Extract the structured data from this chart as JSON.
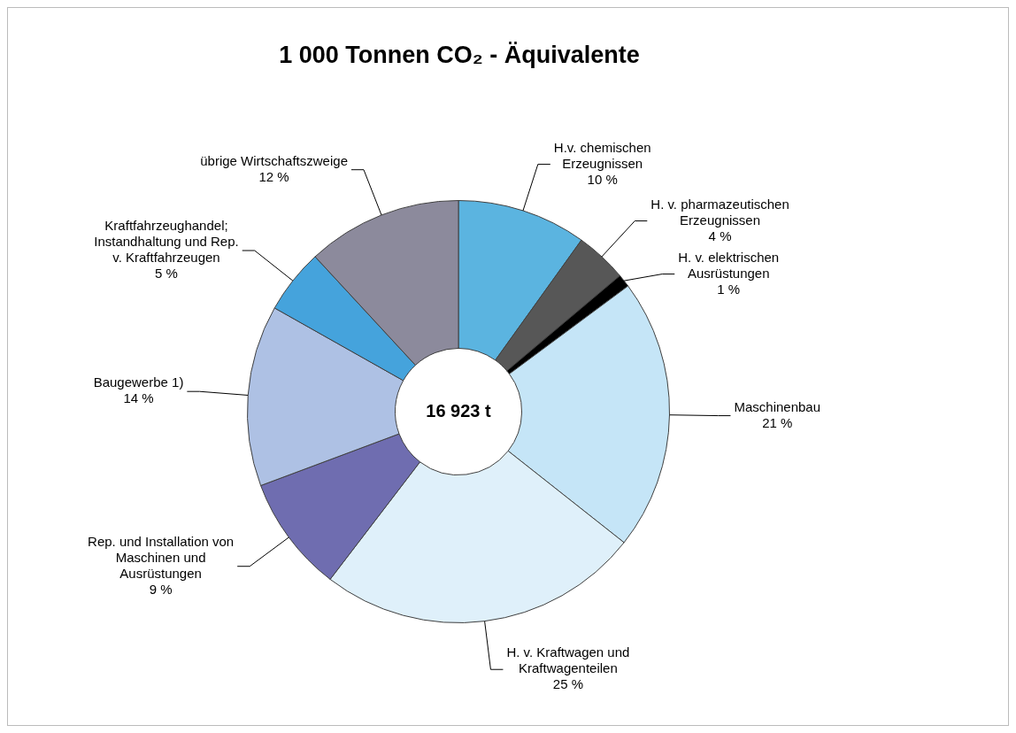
{
  "chart_data": {
    "type": "donut",
    "title": "1 000 Tonnen CO₂ - Äquivalente",
    "categories": [
      "H.v. chemischen Erzeugnissen",
      "H. v. pharmazeutischen Erzeugnissen",
      "H. v. elektrischen Ausrüstungen",
      "Maschinenbau",
      "H. v. Kraftwagen und Kraftwagenteilen",
      "Rep. und Installation von Maschinen und Ausrüstungen",
      "Baugewerbe 1)",
      "Kraftfahrzeughandel; Instandhaltung und Rep. v. Kraftfahrzeugen",
      "übrige Wirtschaftszweige"
    ],
    "values": [
      10,
      4,
      1,
      21,
      25,
      9,
      14,
      5,
      12
    ],
    "value_labels": [
      "10 %",
      "4 %",
      "1 %",
      "21 %",
      "25 %",
      "9 %",
      "14 %",
      "5 %",
      "12 %"
    ],
    "colors": [
      "#5bb4e0",
      "#575757",
      "#000000",
      "#c5e5f7",
      "#dff0fa",
      "#6f6db0",
      "#aec1e4",
      "#45a3dc",
      "#8c8a9c"
    ],
    "annotations": [
      "16 923 t"
    ],
    "legend": false
  }
}
